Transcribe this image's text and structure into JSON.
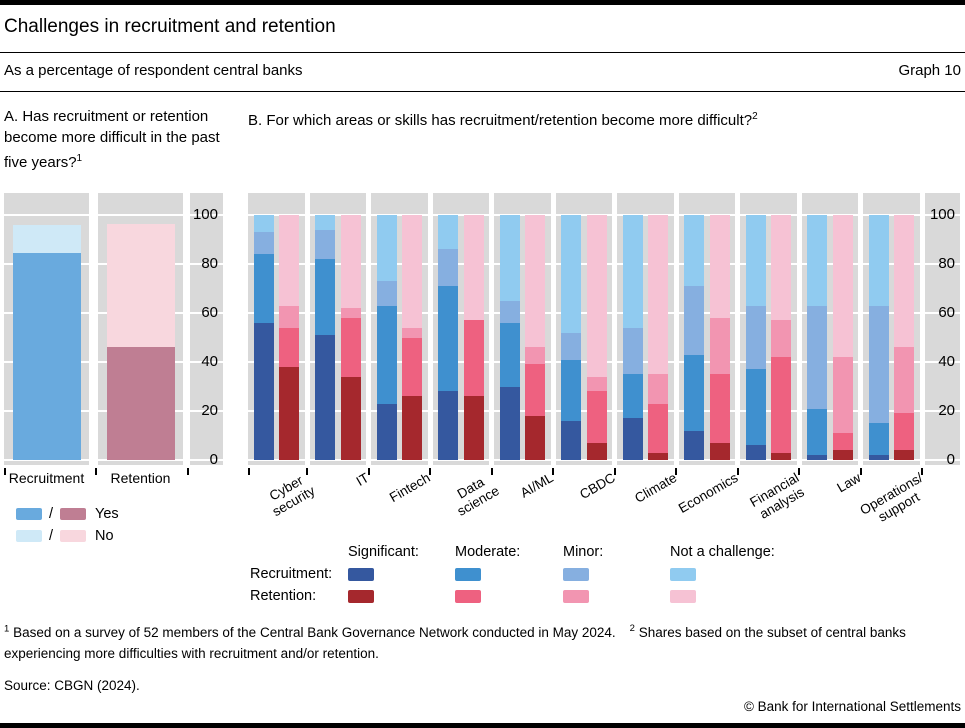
{
  "header": {
    "title": "Challenges in recruitment and retention",
    "subtitle": "As a percentage of respondent central banks",
    "graph_number": "Graph 10"
  },
  "panel_a": {
    "title": "A. Has recruitment or retention become more difficult in the past five years?",
    "footnote_marker": "1",
    "legend": {
      "separator": "/",
      "yes_label": "Yes",
      "no_label": "No"
    }
  },
  "panel_b": {
    "title": "B. For which areas or skills has recruitment/retention become more difficult?",
    "footnote_marker": "2",
    "legend": {
      "col_headers": [
        "Significant:",
        "Moderate:",
        "Minor:",
        "Not a challenge:"
      ],
      "row_labels": [
        "Recruitment:",
        "Retention:"
      ]
    }
  },
  "colors": {
    "plot_bg": "#d9d9d9",
    "a_yes_blue": "#69aade",
    "a_no_blue": "#cfe9f7",
    "a_yes_rose": "#bf7e93",
    "a_no_pink": "#f8d7de",
    "rec_significant": "#35589f",
    "rec_moderate": "#3f90cf",
    "rec_minor": "#86afe0",
    "rec_not": "#90cbf0",
    "ret_significant": "#a5282d",
    "ret_moderate": "#ee6180",
    "ret_minor": "#f295b1",
    "ret_not": "#f6c2d4"
  },
  "chart_data": [
    {
      "panel": "A",
      "type": "bar",
      "stacked": true,
      "title": "Has recruitment or retention become more difficult in the past five years?",
      "ylabel": "% of respondent central banks",
      "ylim": [
        0,
        100
      ],
      "yticks": [
        0,
        20,
        40,
        60,
        80,
        100
      ],
      "grid": true,
      "categories": [
        "Recruitment",
        "Retention"
      ],
      "bars": [
        {
          "category": "Recruitment",
          "segments": [
            {
              "name": "Yes",
              "value": 84.6,
              "color": "a_yes_blue"
            },
            {
              "name": "No",
              "value": 11.5,
              "color": "a_no_blue"
            }
          ]
        },
        {
          "category": "Retention",
          "segments": [
            {
              "name": "Yes",
              "value": 46.2,
              "color": "a_yes_rose"
            },
            {
              "name": "No",
              "value": 50.0,
              "color": "a_no_pink"
            }
          ]
        }
      ]
    },
    {
      "panel": "B",
      "type": "bar",
      "stacked": true,
      "title": "For which areas or skills has recruitment/retention become more difficult?",
      "ylabel": "% of respondent central banks",
      "ylim": [
        0,
        100
      ],
      "yticks": [
        0,
        20,
        40,
        60,
        80,
        100
      ],
      "grid": true,
      "segment_order": [
        "significant",
        "moderate",
        "minor",
        "not_a_challenge"
      ],
      "series_names": [
        "Recruitment",
        "Retention"
      ],
      "groups": [
        {
          "label_lines": [
            "Cyber",
            "security"
          ],
          "recruitment": {
            "significant": 56,
            "moderate": 28,
            "minor": 9,
            "not_a_challenge": 7
          },
          "retention": {
            "significant": 38,
            "moderate": 16,
            "minor": 9,
            "not_a_challenge": 37
          }
        },
        {
          "label_lines": [
            "IT"
          ],
          "recruitment": {
            "significant": 51,
            "moderate": 31,
            "minor": 12,
            "not_a_challenge": 6
          },
          "retention": {
            "significant": 34,
            "moderate": 24,
            "minor": 4,
            "not_a_challenge": 38
          }
        },
        {
          "label_lines": [
            "Fintech"
          ],
          "recruitment": {
            "significant": 23,
            "moderate": 40,
            "minor": 10,
            "not_a_challenge": 27
          },
          "retention": {
            "significant": 26,
            "moderate": 24,
            "minor": 4,
            "not_a_challenge": 46
          }
        },
        {
          "label_lines": [
            "Data",
            "science"
          ],
          "recruitment": {
            "significant": 28,
            "moderate": 43,
            "minor": 15,
            "not_a_challenge": 14
          },
          "retention": {
            "significant": 26,
            "moderate": 31,
            "minor": 0,
            "not_a_challenge": 43
          }
        },
        {
          "label_lines": [
            "AI/ML"
          ],
          "recruitment": {
            "significant": 30,
            "moderate": 26,
            "minor": 9,
            "not_a_challenge": 35
          },
          "retention": {
            "significant": 18,
            "moderate": 21,
            "minor": 7,
            "not_a_challenge": 54
          }
        },
        {
          "label_lines": [
            "CBDC"
          ],
          "recruitment": {
            "significant": 16,
            "moderate": 25,
            "minor": 11,
            "not_a_challenge": 48
          },
          "retention": {
            "significant": 7,
            "moderate": 21,
            "minor": 6,
            "not_a_challenge": 66
          }
        },
        {
          "label_lines": [
            "Climate"
          ],
          "recruitment": {
            "significant": 17,
            "moderate": 18,
            "minor": 19,
            "not_a_challenge": 46
          },
          "retention": {
            "significant": 3,
            "moderate": 20,
            "minor": 12,
            "not_a_challenge": 65
          }
        },
        {
          "label_lines": [
            "Economics"
          ],
          "recruitment": {
            "significant": 12,
            "moderate": 31,
            "minor": 28,
            "not_a_challenge": 29
          },
          "retention": {
            "significant": 7,
            "moderate": 28,
            "minor": 23,
            "not_a_challenge": 42
          }
        },
        {
          "label_lines": [
            "Financial",
            "analysis"
          ],
          "recruitment": {
            "significant": 6,
            "moderate": 31,
            "minor": 26,
            "not_a_challenge": 37
          },
          "retention": {
            "significant": 3,
            "moderate": 39,
            "minor": 15,
            "not_a_challenge": 43
          }
        },
        {
          "label_lines": [
            "Law"
          ],
          "recruitment": {
            "significant": 2,
            "moderate": 19,
            "minor": 42,
            "not_a_challenge": 37
          },
          "retention": {
            "significant": 4,
            "moderate": 7,
            "minor": 31,
            "not_a_challenge": 58
          }
        },
        {
          "label_lines": [
            "Operations/",
            "support"
          ],
          "recruitment": {
            "significant": 2,
            "moderate": 13,
            "minor": 48,
            "not_a_challenge": 37
          },
          "retention": {
            "significant": 4,
            "moderate": 15,
            "minor": 27,
            "not_a_challenge": 54
          }
        }
      ]
    }
  ],
  "footnotes": [
    {
      "marker": "1",
      "text": "Based on a survey of 52 members of the Central Bank Governance Network conducted in May 2024."
    },
    {
      "marker": "2",
      "text": "Shares based on the subset of central banks experiencing more difficulties with recruitment and/or retention."
    }
  ],
  "source": "Source: CBGN (2024).",
  "copyright": "© Bank for International Settlements"
}
